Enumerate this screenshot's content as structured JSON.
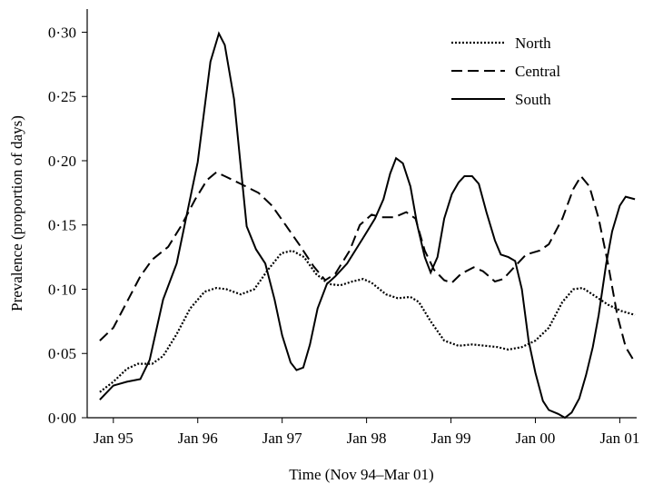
{
  "chart_data": {
    "type": "line",
    "xlabel": "Time (Nov 94–Mar 01)",
    "ylabel": "Prevalence (proportion of days)",
    "xlim": [
      1994.69,
      2001.2
    ],
    "xticks": [
      {
        "value": 1995,
        "label": "Jan 95"
      },
      {
        "value": 1996,
        "label": "Jan 96"
      },
      {
        "value": 1997,
        "label": "Jan 97"
      },
      {
        "value": 1998,
        "label": "Jan 98"
      },
      {
        "value": 1999,
        "label": "Jan 99"
      },
      {
        "value": 2000,
        "label": "Jan 00"
      },
      {
        "value": 2001,
        "label": "Jan 01"
      }
    ],
    "ylim": [
      0,
      0.318
    ],
    "yticks": [
      {
        "value": 0,
        "label": "0·00"
      },
      {
        "value": 0.05,
        "label": "0·05"
      },
      {
        "value": 0.1,
        "label": "0·10"
      },
      {
        "value": 0.15,
        "label": "0·15"
      },
      {
        "value": 0.2,
        "label": "0·20"
      },
      {
        "value": 0.25,
        "label": "0·25"
      },
      {
        "value": 0.3,
        "label": "0·30"
      }
    ],
    "legend": "upper right",
    "series": [
      {
        "name": "North",
        "color": "#000000",
        "dash": "dotted",
        "x": [
          1994.84,
          1995.0,
          1995.16,
          1995.29,
          1995.46,
          1995.59,
          1995.75,
          1995.91,
          1996.08,
          1996.22,
          1996.34,
          1996.51,
          1996.67,
          1996.83,
          1996.99,
          1997.12,
          1997.26,
          1997.4,
          1997.55,
          1997.69,
          1997.83,
          1997.96,
          1998.06,
          1998.23,
          1998.37,
          1998.52,
          1998.62,
          1998.76,
          1998.92,
          1999.09,
          1999.25,
          1999.41,
          1999.55,
          1999.68,
          1999.84,
          2000.0,
          2000.16,
          2000.32,
          2000.45,
          2000.56,
          2000.7,
          2000.86,
          2001.02,
          2001.18
        ],
        "values": [
          0.02,
          0.028,
          0.038,
          0.042,
          0.042,
          0.048,
          0.065,
          0.085,
          0.098,
          0.101,
          0.1,
          0.096,
          0.1,
          0.115,
          0.128,
          0.13,
          0.125,
          0.112,
          0.104,
          0.103,
          0.106,
          0.108,
          0.105,
          0.096,
          0.093,
          0.094,
          0.09,
          0.075,
          0.06,
          0.056,
          0.057,
          0.056,
          0.055,
          0.053,
          0.055,
          0.06,
          0.07,
          0.09,
          0.1,
          0.101,
          0.095,
          0.088,
          0.083,
          0.08
        ]
      },
      {
        "name": "Central",
        "color": "#000000",
        "dash": "dashed",
        "x": [
          1994.84,
          1995.0,
          1995.16,
          1995.32,
          1995.46,
          1995.65,
          1995.81,
          1995.97,
          1996.11,
          1996.22,
          1996.32,
          1996.51,
          1996.72,
          1996.88,
          1997.04,
          1997.2,
          1997.37,
          1997.51,
          1997.63,
          1997.8,
          1997.92,
          1998.06,
          1998.17,
          1998.33,
          1998.47,
          1998.58,
          1998.69,
          1998.8,
          1998.92,
          1999.01,
          1999.12,
          1999.27,
          1999.38,
          1999.52,
          1999.62,
          1999.76,
          1999.89,
          2000.05,
          2000.16,
          2000.32,
          2000.45,
          2000.54,
          2000.64,
          2000.75,
          2000.86,
          2000.97,
          2001.07,
          2001.18
        ],
        "values": [
          0.06,
          0.07,
          0.09,
          0.11,
          0.123,
          0.133,
          0.15,
          0.17,
          0.185,
          0.191,
          0.188,
          0.182,
          0.175,
          0.165,
          0.15,
          0.135,
          0.118,
          0.107,
          0.112,
          0.13,
          0.15,
          0.158,
          0.156,
          0.156,
          0.16,
          0.155,
          0.13,
          0.115,
          0.107,
          0.105,
          0.112,
          0.117,
          0.114,
          0.106,
          0.108,
          0.118,
          0.127,
          0.13,
          0.135,
          0.155,
          0.178,
          0.188,
          0.18,
          0.155,
          0.12,
          0.08,
          0.055,
          0.043
        ]
      },
      {
        "name": "South",
        "color": "#000000",
        "dash": "solid",
        "x": [
          1994.84,
          1995.0,
          1995.16,
          1995.32,
          1995.43,
          1995.59,
          1995.75,
          1996.0,
          1996.15,
          1996.25,
          1996.32,
          1996.43,
          1996.58,
          1996.69,
          1996.8,
          1996.91,
          1997.0,
          1997.1,
          1997.17,
          1997.25,
          1997.33,
          1997.42,
          1997.53,
          1997.63,
          1997.77,
          1997.96,
          1998.1,
          1998.2,
          1998.28,
          1998.35,
          1998.43,
          1998.52,
          1998.6,
          1998.69,
          1998.76,
          1998.84,
          1998.92,
          1999.01,
          1999.09,
          1999.16,
          1999.25,
          1999.33,
          1999.42,
          1999.52,
          1999.59,
          1999.68,
          1999.76,
          1999.84,
          1999.92,
          2000.0,
          2000.09,
          2000.16,
          2000.27,
          2000.35,
          2000.43,
          2000.52,
          2000.6,
          2000.68,
          2000.75,
          2000.84,
          2000.91,
          2001.0,
          2001.07,
          2001.18
        ],
        "values": [
          0.014,
          0.025,
          0.028,
          0.03,
          0.045,
          0.092,
          0.12,
          0.199,
          0.277,
          0.299,
          0.29,
          0.248,
          0.149,
          0.131,
          0.12,
          0.092,
          0.064,
          0.043,
          0.037,
          0.039,
          0.057,
          0.085,
          0.104,
          0.11,
          0.12,
          0.14,
          0.155,
          0.17,
          0.19,
          0.202,
          0.198,
          0.18,
          0.15,
          0.125,
          0.113,
          0.125,
          0.155,
          0.174,
          0.183,
          0.188,
          0.188,
          0.182,
          0.16,
          0.138,
          0.127,
          0.125,
          0.122,
          0.1,
          0.06,
          0.035,
          0.013,
          0.006,
          0.003,
          0,
          0.004,
          0.015,
          0.033,
          0.055,
          0.08,
          0.12,
          0.145,
          0.165,
          0.172,
          0.17
        ]
      }
    ]
  }
}
